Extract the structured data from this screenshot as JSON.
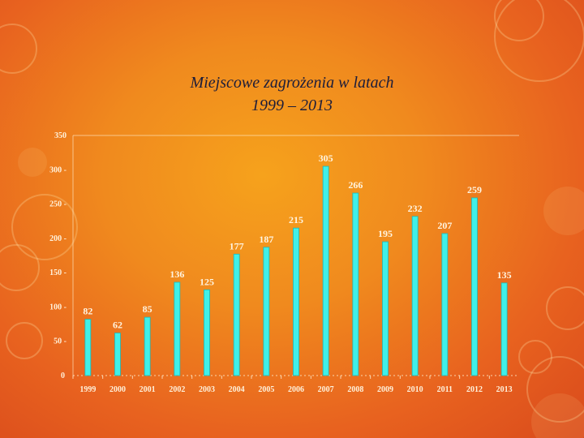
{
  "slide": {
    "title_line1": "Miejscowe zagrożenia w latach",
    "title_line2": "1999 – 2013"
  },
  "colors": {
    "bar": "#40f0e8",
    "bar_edge": "#1fb8b6",
    "text": "#fff4e0",
    "title": "#1d1d3a"
  },
  "chart_data": {
    "type": "bar",
    "title": "Miejscowe zagrożenia w latach 1999 – 2013",
    "xlabel": "",
    "ylabel": "",
    "ylim": [
      0,
      350
    ],
    "yticks": [
      0,
      50,
      100,
      150,
      200,
      250,
      300,
      350
    ],
    "grid": false,
    "legend": "none",
    "categories": [
      "1999",
      "2000",
      "2001",
      "2002",
      "2003",
      "2004",
      "2005",
      "2006",
      "2007",
      "2008",
      "2009",
      "2010",
      "2011",
      "2012",
      "2013"
    ],
    "values": [
      82,
      62,
      85,
      136,
      125,
      177,
      187,
      215,
      305,
      266,
      195,
      232,
      207,
      259,
      135
    ]
  }
}
